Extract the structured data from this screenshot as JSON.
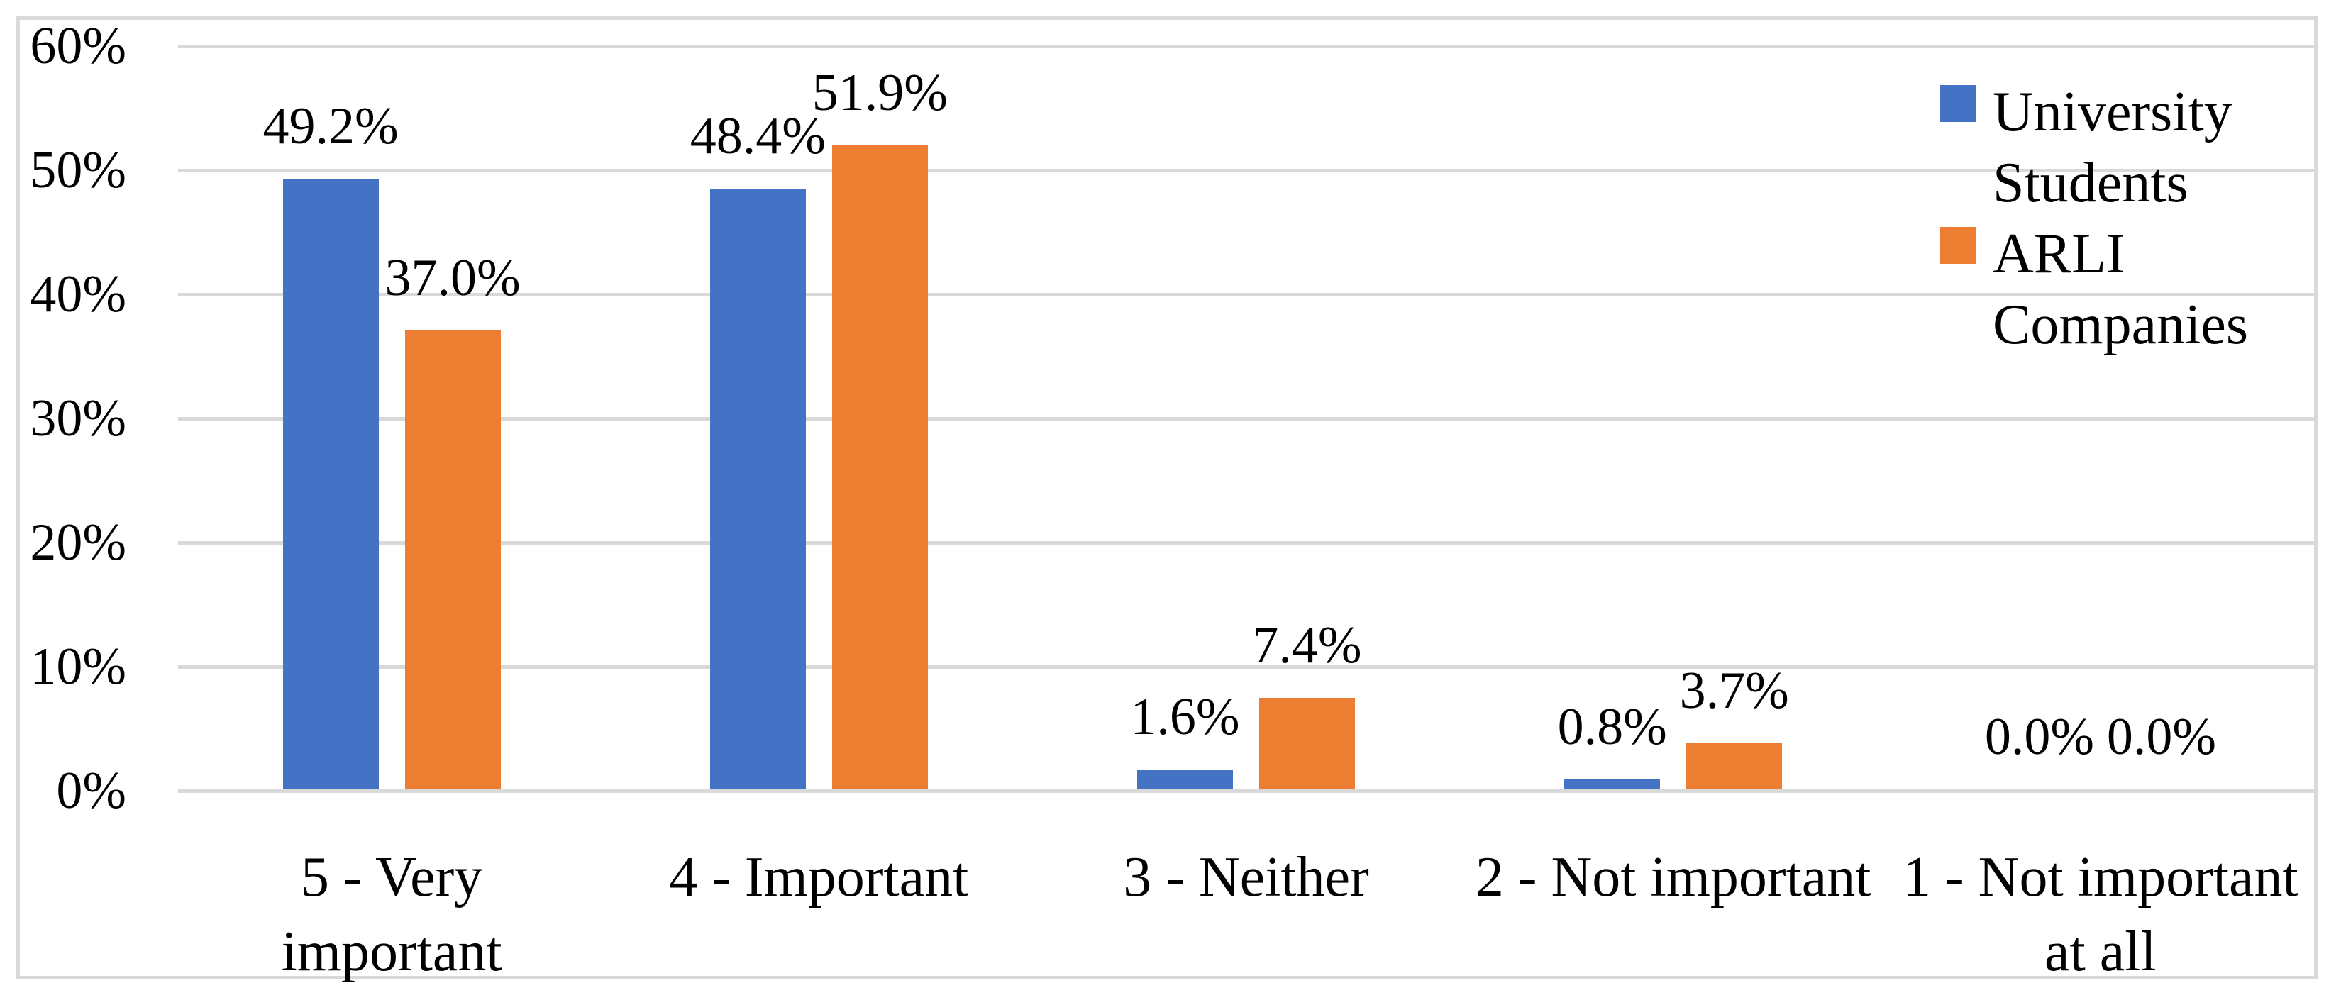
{
  "chart_data": {
    "type": "bar",
    "title": "",
    "xlabel": "",
    "ylabel": "",
    "grid": true,
    "categories": [
      {
        "label": "5 - Very important",
        "display": "5 - Very\nimportant"
      },
      {
        "label": "4 - Important",
        "display": "4 - Important"
      },
      {
        "label": "3 - Neither",
        "display": "3 - Neither"
      },
      {
        "label": "2 - Not important",
        "display": "2 - Not important"
      },
      {
        "label": "1 - Not important at all",
        "display": "1 - Not important\nat all"
      }
    ],
    "series": [
      {
        "name": "University Students",
        "color": "#4472C4",
        "values": [
          49.2,
          48.4,
          1.6,
          0.8,
          0.0
        ],
        "labels": [
          "49.2%",
          "48.4%",
          "1.6%",
          "0.8%",
          "0.0%"
        ]
      },
      {
        "name": "ARLI Companies",
        "color": "#ED7D31",
        "values": [
          37.0,
          51.9,
          7.4,
          3.7,
          0.0
        ],
        "labels": [
          "37.0%",
          "51.9%",
          "7.4%",
          "3.7%",
          "0.0%"
        ]
      }
    ],
    "y_axis": {
      "min": 0,
      "max": 60,
      "step": 10,
      "tick_values": [
        0,
        10,
        20,
        30,
        40,
        50,
        60
      ],
      "tick_labels": [
        "0%",
        "10%",
        "20%",
        "30%",
        "40%",
        "50%",
        "60%"
      ]
    },
    "legend": {
      "position": "top-right",
      "items": [
        {
          "name": "University Students",
          "display": "University\nStudents",
          "color": "#4472C4"
        },
        {
          "name": "ARLI Companies",
          "display": "ARLI\nCompanies",
          "color": "#ED7D31"
        }
      ]
    },
    "styles": {
      "gridline_color": "#D9D9D9",
      "frame_border_color": "#D9D9D9",
      "text_color": "#000000",
      "background_color": "#FFFFFF"
    }
  }
}
